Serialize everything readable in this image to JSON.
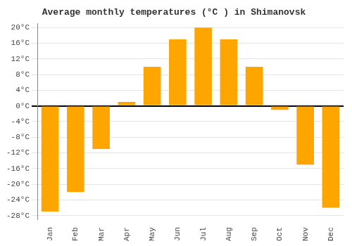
{
  "chart_data": {
    "type": "bar",
    "title": "Average monthly temperatures (°C ) in Shimanovsk",
    "categories": [
      "Jan",
      "Feb",
      "Mar",
      "Apr",
      "May",
      "Jun",
      "Jul",
      "Aug",
      "Sep",
      "Oct",
      "Nov",
      "Dec"
    ],
    "values": [
      -27,
      -22,
      -11,
      1,
      10,
      17,
      20,
      17,
      10,
      -1,
      -15,
      -26
    ],
    "color": "#FFA500",
    "ylim": [
      -29,
      21
    ],
    "yticks": [
      {
        "value": -28,
        "label": "-28°C"
      },
      {
        "value": -24,
        "label": "-24°C"
      },
      {
        "value": -20,
        "label": "-20°C"
      },
      {
        "value": -16,
        "label": "-16°C"
      },
      {
        "value": -12,
        "label": "-12°C"
      },
      {
        "value": -8,
        "label": "-8°C"
      },
      {
        "value": -4,
        "label": "-4°C"
      },
      {
        "value": 0,
        "label": "0°C"
      },
      {
        "value": 4,
        "label": "4°C"
      },
      {
        "value": 8,
        "label": "8°C"
      },
      {
        "value": 12,
        "label": "12°C"
      },
      {
        "value": 16,
        "label": "16°C"
      },
      {
        "value": 20,
        "label": "20°C"
      }
    ],
    "grid": true
  }
}
